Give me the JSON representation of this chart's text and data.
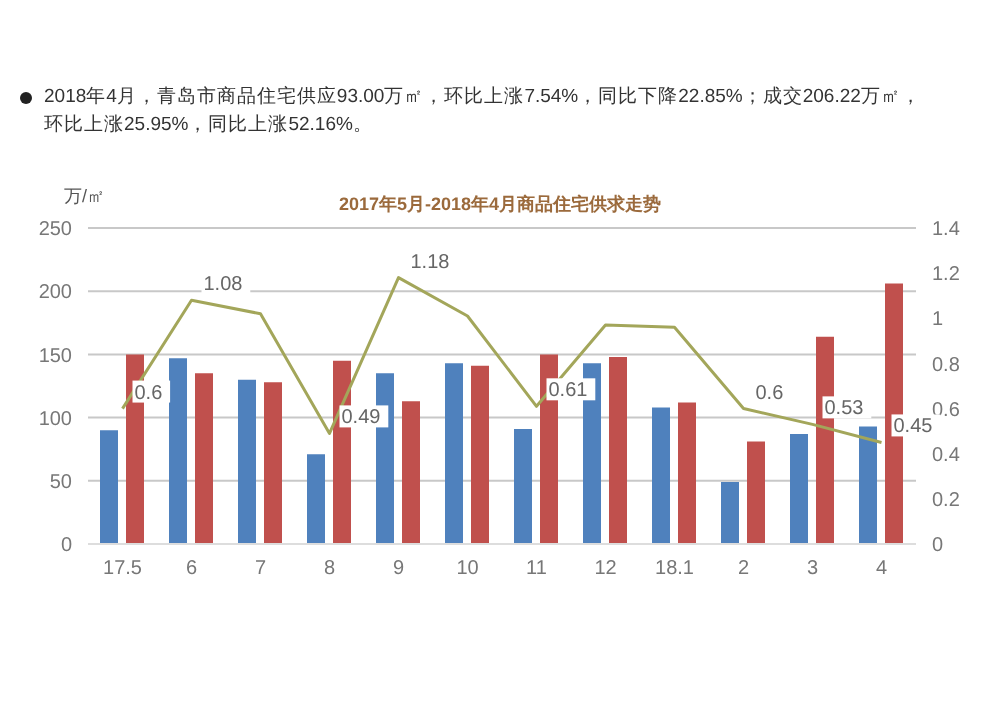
{
  "chart_data": {
    "type": "bar",
    "title": "2017年5月-2018年4月商品住宅供求走势",
    "ylabel": "万/㎡",
    "annotations": [
      "2018年4月，青岛市商品住宅供应93.00万㎡，环比上涨7.54%，同比下降22.85%；成交206.22万㎡，环比上涨25.95%，同比上涨52.16%。"
    ],
    "categories": [
      "17.5",
      "6",
      "7",
      "8",
      "9",
      "10",
      "11",
      "12",
      "18.1",
      "2",
      "3",
      "4"
    ],
    "series": [
      {
        "color": "#4f81bd",
        "values": [
          90,
          147,
          130,
          71,
          135,
          143,
          91,
          143,
          108,
          49,
          87,
          93
        ]
      },
      {
        "color": "#c0504d",
        "values": [
          150,
          135,
          128,
          145,
          113,
          141,
          150,
          148,
          112,
          81,
          164,
          206
        ]
      },
      {
        "type": "line",
        "axis": "y2",
        "color": "#a3a65a",
        "values": [
          0.6,
          1.08,
          1.02,
          0.49,
          1.18,
          1.01,
          0.61,
          0.97,
          0.96,
          0.6,
          0.53,
          0.45
        ],
        "value_labels": [
          "0.6",
          "1.08",
          null,
          "0.49",
          "1.18",
          null,
          "0.61",
          null,
          null,
          "0.6",
          "0.53",
          "0.45"
        ]
      }
    ],
    "ylim": [
      0,
      250
    ],
    "yticks": [
      0,
      50,
      100,
      150,
      200,
      250
    ],
    "y2lim": [
      0,
      1.4
    ],
    "y2ticks": [
      0,
      0.2,
      0.4,
      0.6,
      0.8,
      1,
      1.2,
      1.4
    ],
    "grid": "y"
  }
}
